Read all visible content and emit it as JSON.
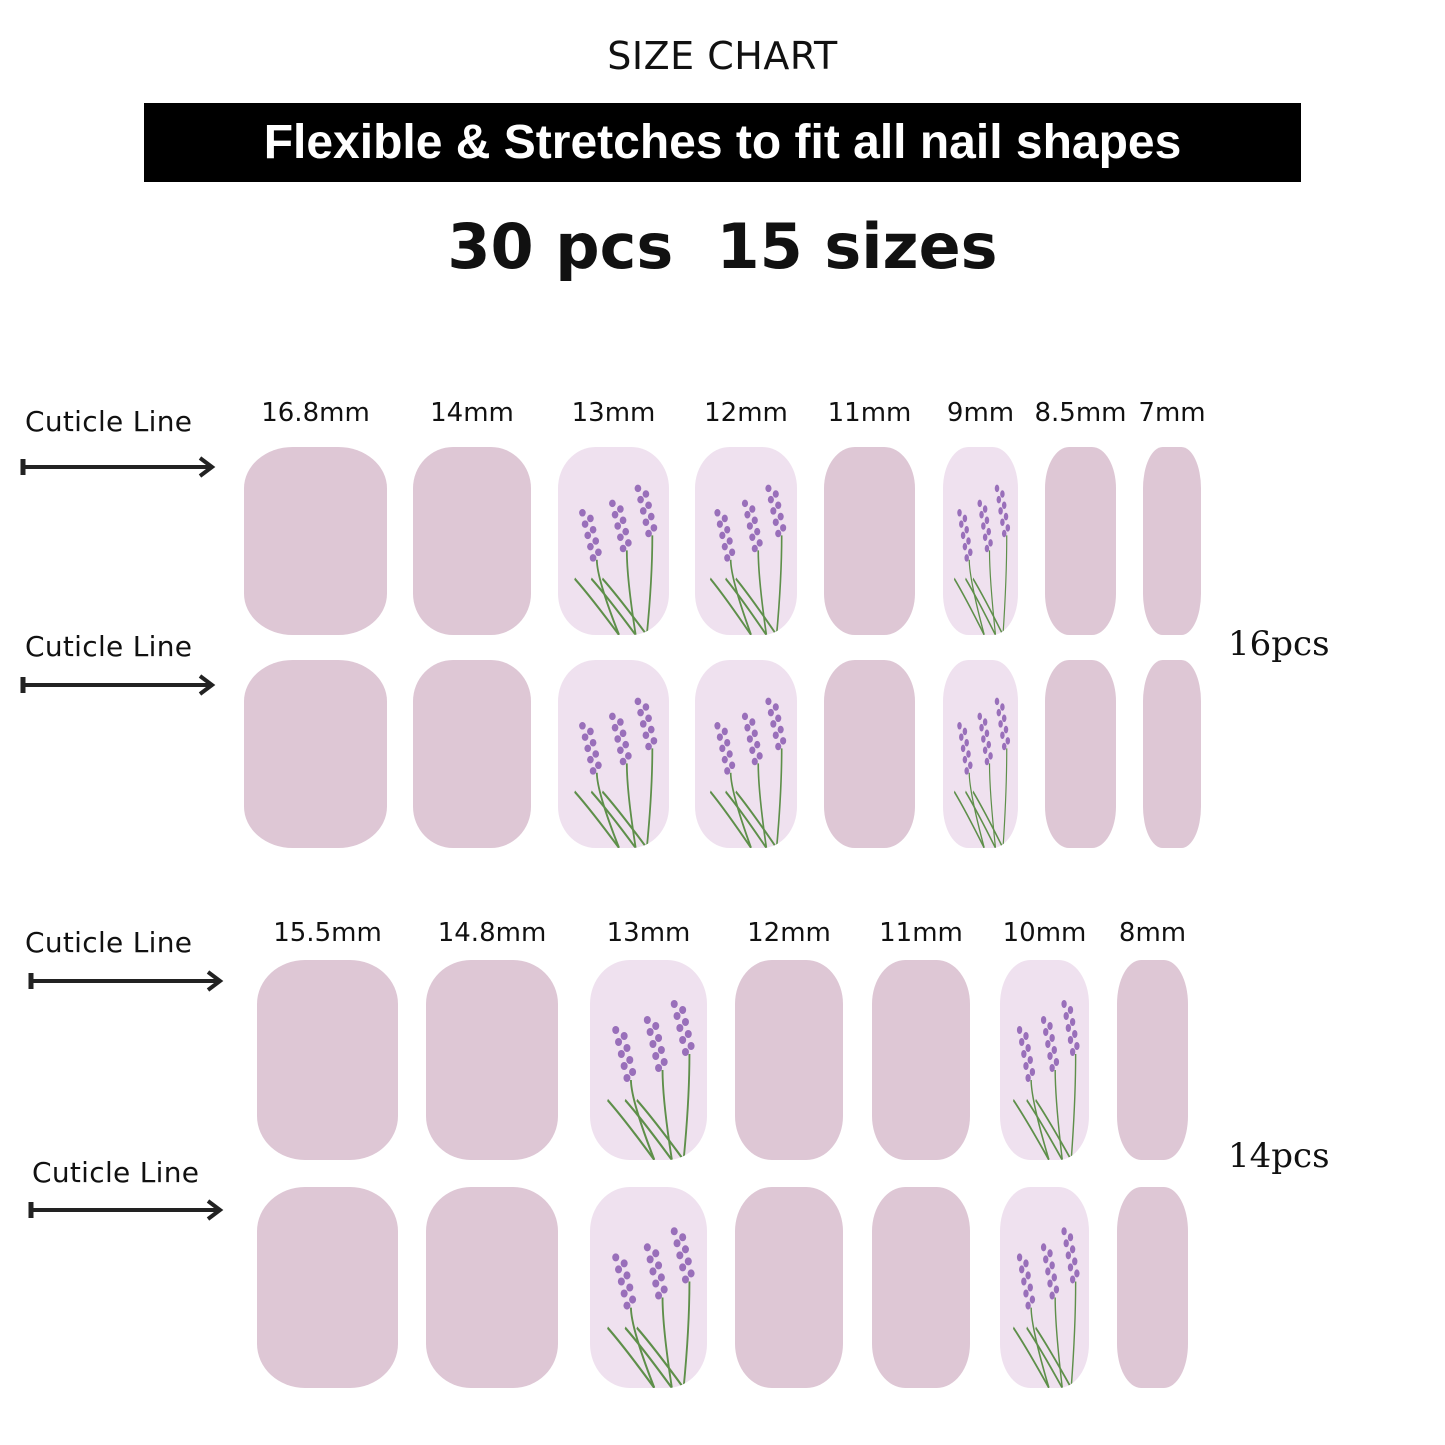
{
  "title": "SIZE CHART",
  "banner": "Flexible & Stretches to fit all nail shapes",
  "count": "30 pcs  15 sizes",
  "cuticle_label": "Cuticle Line",
  "colors": {
    "solid_nail": "#dec7d5",
    "floral_nail": "#efe1ef",
    "lavender": "#8a5ab0",
    "stem": "#5e8f4a"
  },
  "set1": {
    "pcs": "16pcs",
    "sizes": [
      {
        "label": "16.8mm",
        "floral": false
      },
      {
        "label": "14mm",
        "floral": false
      },
      {
        "label": "13mm",
        "floral": true
      },
      {
        "label": "12mm",
        "floral": true
      },
      {
        "label": "11mm",
        "floral": false
      },
      {
        "label": "9mm",
        "floral": true
      },
      {
        "label": "8.5mm",
        "floral": false
      },
      {
        "label": "7mm",
        "floral": false
      }
    ]
  },
  "set2": {
    "pcs": "14pcs",
    "sizes": [
      {
        "label": "15.5mm",
        "floral": false
      },
      {
        "label": "14.8mm",
        "floral": false
      },
      {
        "label": "13mm",
        "floral": true
      },
      {
        "label": "12mm",
        "floral": false
      },
      {
        "label": "11mm",
        "floral": false
      },
      {
        "label": "10mm",
        "floral": true
      },
      {
        "label": "8mm",
        "floral": false
      }
    ]
  }
}
